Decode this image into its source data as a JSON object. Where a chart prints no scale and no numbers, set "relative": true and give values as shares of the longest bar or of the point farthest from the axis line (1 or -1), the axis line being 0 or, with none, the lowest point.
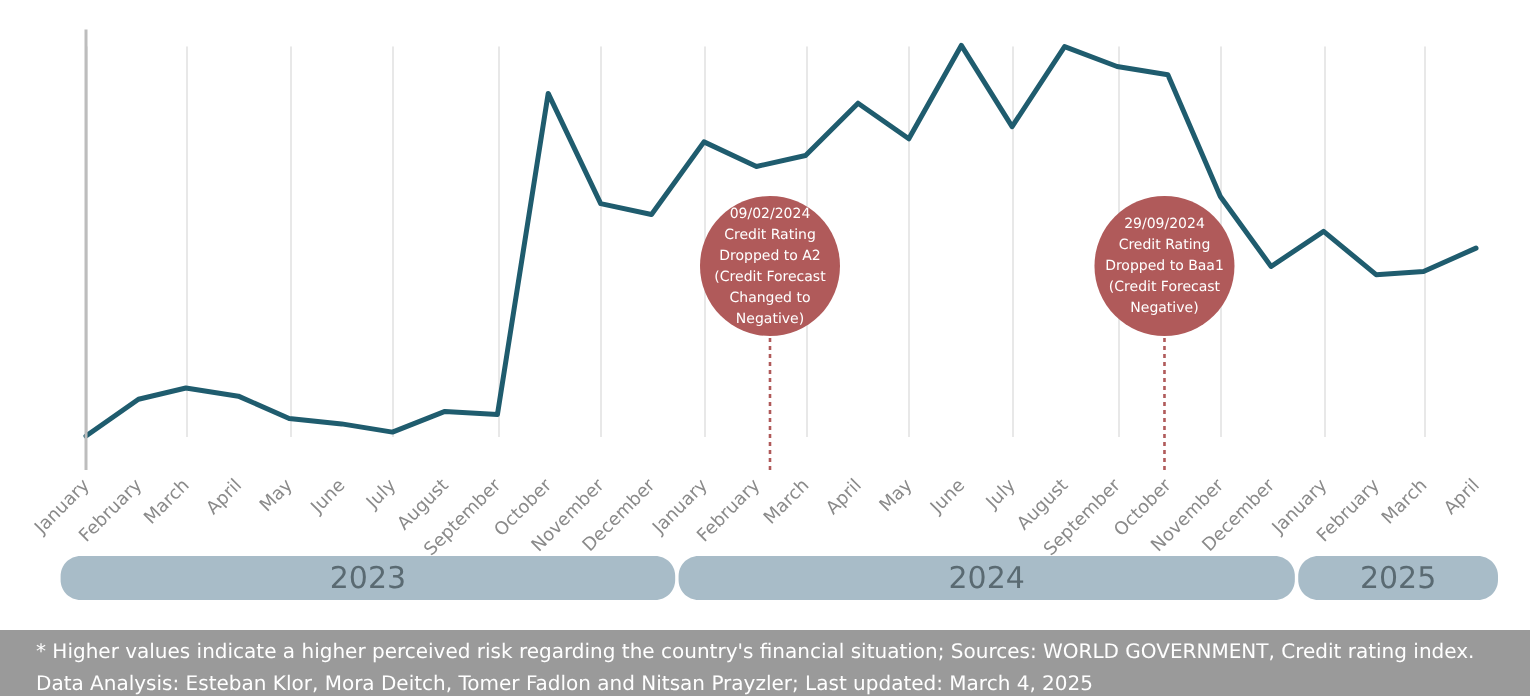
{
  "chart_data": {
    "type": "line",
    "relative": true,
    "grid": "x",
    "line_style": "solid",
    "x": [
      "2023-01",
      "2023-02",
      "2023-03",
      "2023-04",
      "2023-05",
      "2023-06",
      "2023-07",
      "2023-08",
      "2023-09",
      "2023-10",
      "2023-11",
      "2023-12",
      "2024-01",
      "2024-02",
      "2024-03",
      "2024-04",
      "2024-05",
      "2024-06",
      "2024-07",
      "2024-08",
      "2024-09",
      "2024-10",
      "2024-11",
      "2024-12",
      "2025-01",
      "2025-02",
      "2025-03",
      "2025-04"
    ],
    "xlim": [
      "2023-01",
      "2025-04"
    ],
    "xticks": [
      {
        "value": "2023-01",
        "label": "January"
      },
      {
        "value": "2023-02",
        "label": "February"
      },
      {
        "value": "2023-03",
        "label": "March"
      },
      {
        "value": "2023-04",
        "label": "April"
      },
      {
        "value": "2023-05",
        "label": "May"
      },
      {
        "value": "2023-06",
        "label": "June"
      },
      {
        "value": "2023-07",
        "label": "July"
      },
      {
        "value": "2023-08",
        "label": "August"
      },
      {
        "value": "2023-09",
        "label": "September"
      },
      {
        "value": "2023-10",
        "label": "October"
      },
      {
        "value": "2023-11",
        "label": "November"
      },
      {
        "value": "2023-12",
        "label": "December"
      },
      {
        "value": "2024-01",
        "label": "January"
      },
      {
        "value": "2024-02",
        "label": "February"
      },
      {
        "value": "2024-03",
        "label": "March"
      },
      {
        "value": "2024-04",
        "label": "April"
      },
      {
        "value": "2024-05",
        "label": "May"
      },
      {
        "value": "2024-06",
        "label": "June"
      },
      {
        "value": "2024-07",
        "label": "July"
      },
      {
        "value": "2024-08",
        "label": "August"
      },
      {
        "value": "2024-09",
        "label": "September"
      },
      {
        "value": "2024-10",
        "label": "October"
      },
      {
        "value": "2024-11",
        "label": "November"
      },
      {
        "value": "2024-12",
        "label": "December"
      },
      {
        "value": "2025-01",
        "label": "January"
      },
      {
        "value": "2025-02",
        "label": "February"
      },
      {
        "value": "2025-03",
        "label": "March"
      },
      {
        "value": "2025-04",
        "label": "April"
      }
    ],
    "series": [
      {
        "color": "#1f5c6e",
        "values": [
          0,
          0.094,
          0.123,
          0.102,
          0.045,
          0.031,
          0.01,
          0.063,
          0.055,
          0.877,
          0.595,
          0.567,
          0.753,
          0.69,
          0.718,
          0.852,
          0.761,
          1,
          0.792,
          0.997,
          0.946,
          0.925,
          0.613,
          0.434,
          0.524,
          0.413,
          0.421,
          0.481
        ]
      }
    ],
    "ref_lines": [
      {
        "axis": "x",
        "value": "2024-02-09",
        "label": "09/02/2024\nCredit Rating\nDropped to A2\n(Credit Forecast\nChanged to\nNegative)",
        "color": "#b05a5a",
        "line_style": "dotted"
      },
      {
        "axis": "x",
        "value": "2024-09-29",
        "label": "29/09/2024\nCredit Rating\nDropped to Baa1\n(Credit Forecast\nNegative)",
        "color": "#b05a5a",
        "line_style": "dotted"
      }
    ],
    "annotations": [
      "2023",
      "2024",
      "2025",
      "* Higher values indicate a higher perceived risk regarding the country's financial situation; Sources: WORLD GOVERNMENT, Credit rating index.",
      "Data Analysis: Esteban Klor, Mora Deitch, Tomer Fadlon and Nitsan Prayzler; Last updated: March 4, 2025"
    ]
  }
}
